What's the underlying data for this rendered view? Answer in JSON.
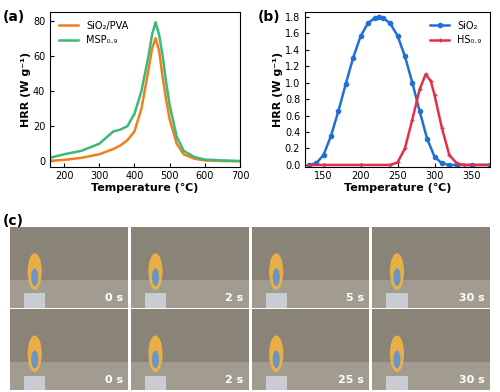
{
  "chart_data": [
    {
      "type": "line",
      "panel_label": "(a)",
      "x_label": "Temperature (℃)",
      "y_label": "HRR (W g⁻¹)",
      "xlim": [
        160,
        700
      ],
      "xticks": [
        200,
        300,
        400,
        500,
        600,
        700
      ],
      "ylim": [
        -3,
        85
      ],
      "yticks": [
        0,
        20,
        40,
        60,
        80
      ],
      "legend": "upper left",
      "series": [
        {
          "name": "SiO₂/PVA",
          "color": "#f07f1f",
          "marker": "none",
          "line_style": "solid",
          "x": [
            160,
            200,
            250,
            300,
            340,
            360,
            380,
            400,
            420,
            440,
            450,
            460,
            470,
            480,
            490,
            500,
            520,
            540,
            570,
            600,
            650,
            700
          ],
          "values": [
            0.3,
            0.8,
            2,
            4,
            7,
            9,
            12,
            17,
            30,
            52,
            64,
            70,
            63,
            48,
            35,
            24,
            10,
            4,
            1.5,
            0.5,
            0.2,
            0
          ]
        },
        {
          "name": "MSP₀.₉",
          "color": "#3cb878",
          "marker": "none",
          "line_style": "solid",
          "x": [
            160,
            200,
            250,
            300,
            340,
            360,
            380,
            400,
            420,
            440,
            450,
            460,
            470,
            480,
            490,
            500,
            520,
            540,
            570,
            600,
            650,
            700
          ],
          "values": [
            2,
            4,
            6,
            10,
            17,
            18,
            20,
            27,
            40,
            60,
            72,
            79,
            72,
            60,
            45,
            32,
            14,
            6,
            2.5,
            1,
            0.5,
            0.2
          ]
        }
      ]
    },
    {
      "type": "line",
      "panel_label": "(b)",
      "x_label": "Temperature (℃)",
      "y_label": "HRR (W g⁻¹)",
      "xlim": [
        125,
        375
      ],
      "xticks": [
        150,
        200,
        250,
        300,
        350
      ],
      "ylim": [
        -0.02,
        1.86
      ],
      "yticks": [
        0.0,
        0.2,
        0.4,
        0.6,
        0.8,
        1.0,
        1.2,
        1.4,
        1.6,
        1.8
      ],
      "legend": "upper right",
      "series": [
        {
          "name": "SiO₂",
          "color": "#1f6fd6",
          "marker": "o",
          "line_style": "solid",
          "x": [
            130,
            140,
            150,
            160,
            170,
            180,
            190,
            200,
            210,
            220,
            225,
            230,
            240,
            250,
            260,
            270,
            280,
            290,
            300,
            310,
            320,
            330,
            350,
            375
          ],
          "values": [
            0,
            0.02,
            0.12,
            0.35,
            0.65,
            0.98,
            1.3,
            1.56,
            1.72,
            1.79,
            1.8,
            1.79,
            1.72,
            1.57,
            1.32,
            1.0,
            0.65,
            0.32,
            0.1,
            0.02,
            0,
            0,
            0,
            0
          ]
        },
        {
          "name": "HS₀.₉",
          "color": "#e0314a",
          "marker": "+",
          "line_style": "solid",
          "x": [
            130,
            150,
            200,
            240,
            250,
            260,
            270,
            280,
            288,
            295,
            300,
            310,
            320,
            330,
            340,
            375
          ],
          "values": [
            0,
            0,
            0,
            0,
            0.03,
            0.2,
            0.55,
            0.92,
            1.1,
            1.02,
            0.85,
            0.45,
            0.12,
            0.02,
            0,
            0
          ]
        }
      ]
    }
  ],
  "photo_panel": {
    "panel_label": "(c)",
    "rows": [
      [
        "0 s",
        "2 s",
        "5 s",
        "30 s"
      ],
      [
        "0 s",
        "2 s",
        "25 s",
        "30 s"
      ]
    ]
  }
}
